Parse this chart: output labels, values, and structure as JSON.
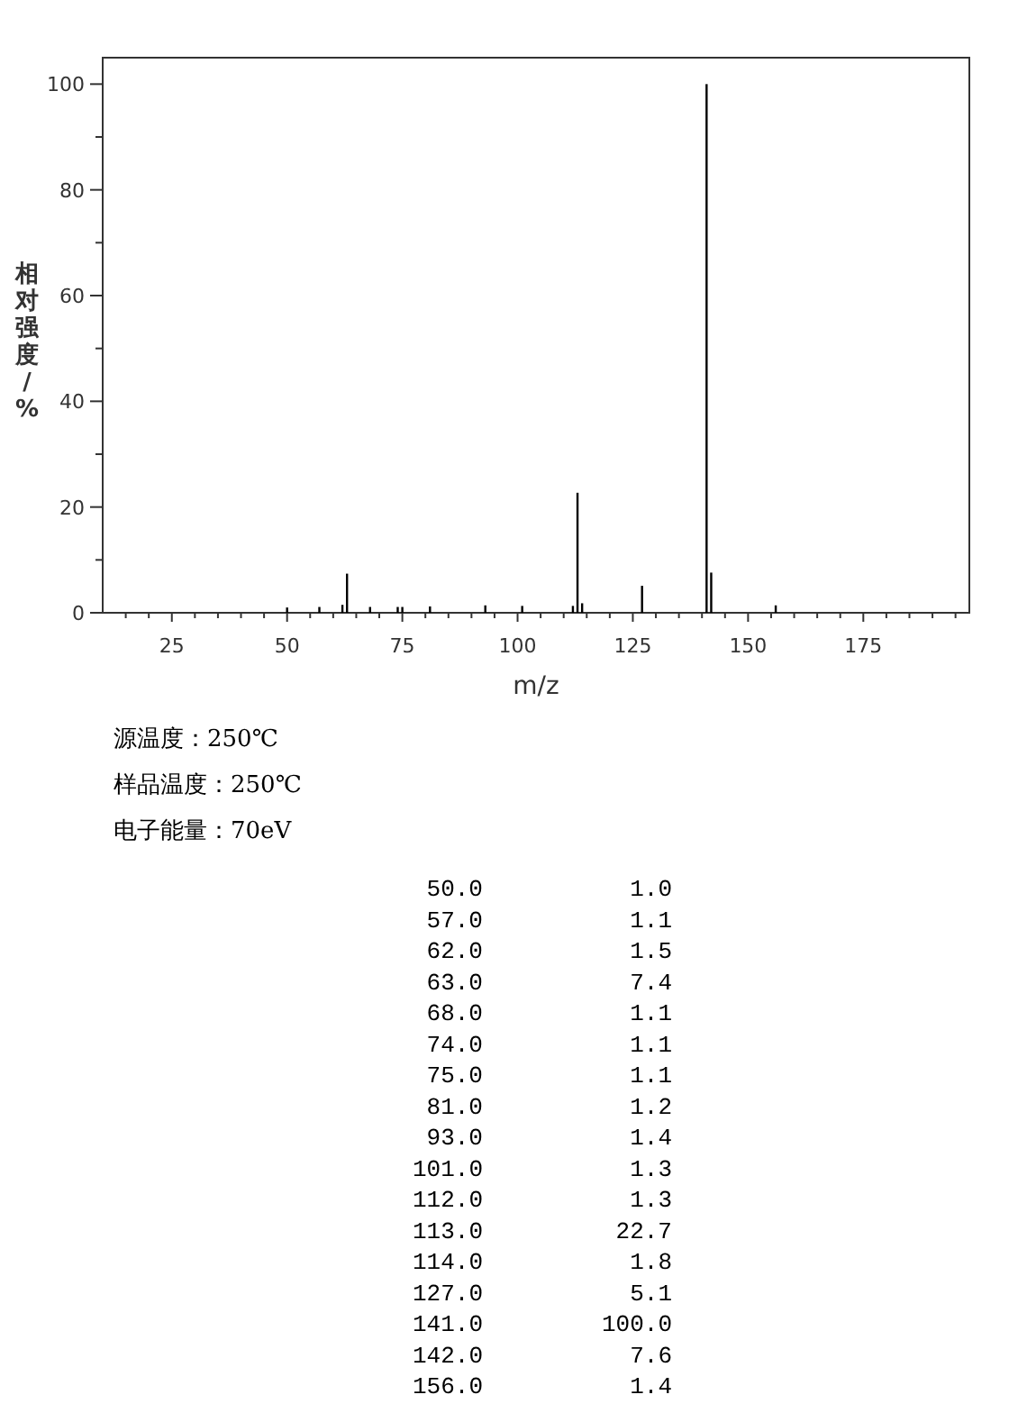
{
  "chart_data": [
    {
      "type": "bar",
      "x": [
        50,
        57,
        62,
        63,
        68,
        74,
        75,
        81,
        93,
        101,
        112,
        113,
        114,
        127,
        141,
        142,
        156
      ],
      "values": [
        1.0,
        1.1,
        1.5,
        7.4,
        1.1,
        1.1,
        1.1,
        1.2,
        1.4,
        1.3,
        1.3,
        22.7,
        1.8,
        5.1,
        100.0,
        7.6,
        1.4
      ],
      "color": "#000000",
      "xlabel": "m/z",
      "ylabel": "相对强度/%",
      "xlim": [
        10,
        198
      ],
      "ylim": [
        0,
        105
      ],
      "xticks": [
        {
          "value": 15,
          "label": null
        },
        {
          "value": 20,
          "label": null
        },
        25,
        {
          "value": 30,
          "label": null
        },
        {
          "value": 35,
          "label": null
        },
        {
          "value": 40,
          "label": null
        },
        {
          "value": 45,
          "label": null
        },
        50,
        {
          "value": 55,
          "label": null
        },
        {
          "value": 60,
          "label": null
        },
        {
          "value": 65,
          "label": null
        },
        {
          "value": 70,
          "label": null
        },
        75,
        {
          "value": 80,
          "label": null
        },
        {
          "value": 85,
          "label": null
        },
        {
          "value": 90,
          "label": null
        },
        {
          "value": 95,
          "label": null
        },
        100,
        {
          "value": 105,
          "label": null
        },
        {
          "value": 110,
          "label": null
        },
        {
          "value": 115,
          "label": null
        },
        {
          "value": 120,
          "label": null
        },
        125,
        {
          "value": 130,
          "label": null
        },
        {
          "value": 135,
          "label": null
        },
        {
          "value": 140,
          "label": null
        },
        {
          "value": 145,
          "label": null
        },
        150,
        {
          "value": 155,
          "label": null
        },
        {
          "value": 160,
          "label": null
        },
        {
          "value": 165,
          "label": null
        },
        {
          "value": 170,
          "label": null
        },
        175,
        {
          "value": 180,
          "label": null
        },
        {
          "value": 185,
          "label": null
        },
        {
          "value": 190,
          "label": null
        },
        {
          "value": 195,
          "label": null
        }
      ],
      "yticks": [
        0,
        {
          "value": 10,
          "label": null
        },
        20,
        {
          "value": 30,
          "label": null
        },
        40,
        {
          "value": 50,
          "label": null
        },
        60,
        {
          "value": 70,
          "label": null
        },
        80,
        {
          "value": 90,
          "label": null
        },
        100
      ],
      "grid": false,
      "annotations": [
        "源温度：250℃",
        "样品温度：250℃",
        "电子能量：70eV"
      ]
    },
    {
      "type": "other",
      "categories": [
        "50.0",
        "57.0",
        "62.0",
        "63.0",
        "68.0",
        "74.0",
        "75.0",
        "81.0",
        "93.0",
        "101.0",
        "112.0",
        "113.0",
        "114.0",
        "127.0",
        "141.0",
        "142.0",
        "156.0"
      ],
      "value_labels": [
        "1.0",
        "1.1",
        "1.5",
        "7.4",
        "1.1",
        "1.1",
        "1.1",
        "1.2",
        "1.4",
        "1.3",
        "1.3",
        "22.7",
        "1.8",
        "5.1",
        "100.0",
        "7.6",
        "1.4"
      ]
    }
  ]
}
